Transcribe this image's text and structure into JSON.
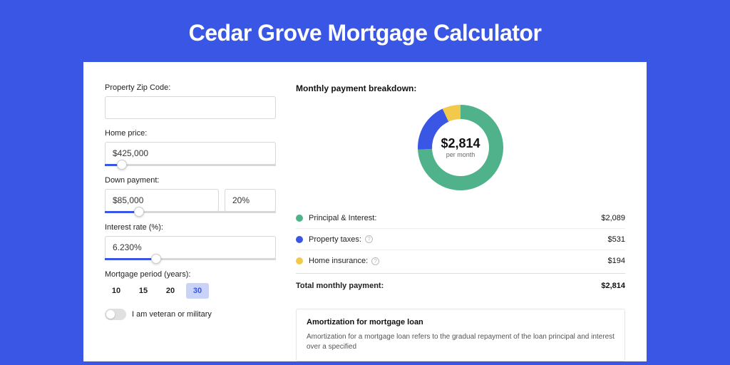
{
  "title": "Cedar Grove Mortgage Calculator",
  "colors": {
    "page_bg": "#3956e5",
    "card_bg": "#ffffff",
    "accent": "#3956e5",
    "text": "#222222",
    "muted": "#666666",
    "border": "#d8d8d8"
  },
  "form": {
    "zip": {
      "label": "Property Zip Code:",
      "value": ""
    },
    "price": {
      "label": "Home price:",
      "value": "$425,000",
      "slider_pct": 10
    },
    "down": {
      "label": "Down payment:",
      "amount": "$85,000",
      "pct": "20%",
      "slider_pct": 20
    },
    "rate": {
      "label": "Interest rate (%):",
      "value": "6.230%",
      "slider_pct": 30
    },
    "period": {
      "label": "Mortgage period (years):",
      "options": [
        "10",
        "15",
        "20",
        "30"
      ],
      "selected": "30"
    },
    "veteran": {
      "label": "I am veteran or military",
      "on": false
    }
  },
  "breakdown": {
    "title": "Monthly payment breakdown:",
    "center_amount": "$2,814",
    "center_sub": "per month",
    "donut": {
      "type": "donut",
      "size": 124,
      "inner_radius": 40,
      "outer_radius": 60,
      "slices": [
        {
          "key": "pi",
          "value": 2089,
          "color": "#4fb28a"
        },
        {
          "key": "tax",
          "value": 531,
          "color": "#3956e5"
        },
        {
          "key": "ins",
          "value": 194,
          "color": "#f3c94b"
        }
      ]
    },
    "items": [
      {
        "key": "pi",
        "label": "Principal & Interest:",
        "value": "$2,089",
        "color": "#4fb28a",
        "info": false
      },
      {
        "key": "tax",
        "label": "Property taxes:",
        "value": "$531",
        "color": "#3956e5",
        "info": true
      },
      {
        "key": "ins",
        "label": "Home insurance:",
        "value": "$194",
        "color": "#f3c94b",
        "info": true
      }
    ],
    "total": {
      "label": "Total monthly payment:",
      "value": "$2,814"
    }
  },
  "amortization": {
    "title": "Amortization for mortgage loan",
    "text": "Amortization for a mortgage loan refers to the gradual repayment of the loan principal and interest over a specified"
  }
}
